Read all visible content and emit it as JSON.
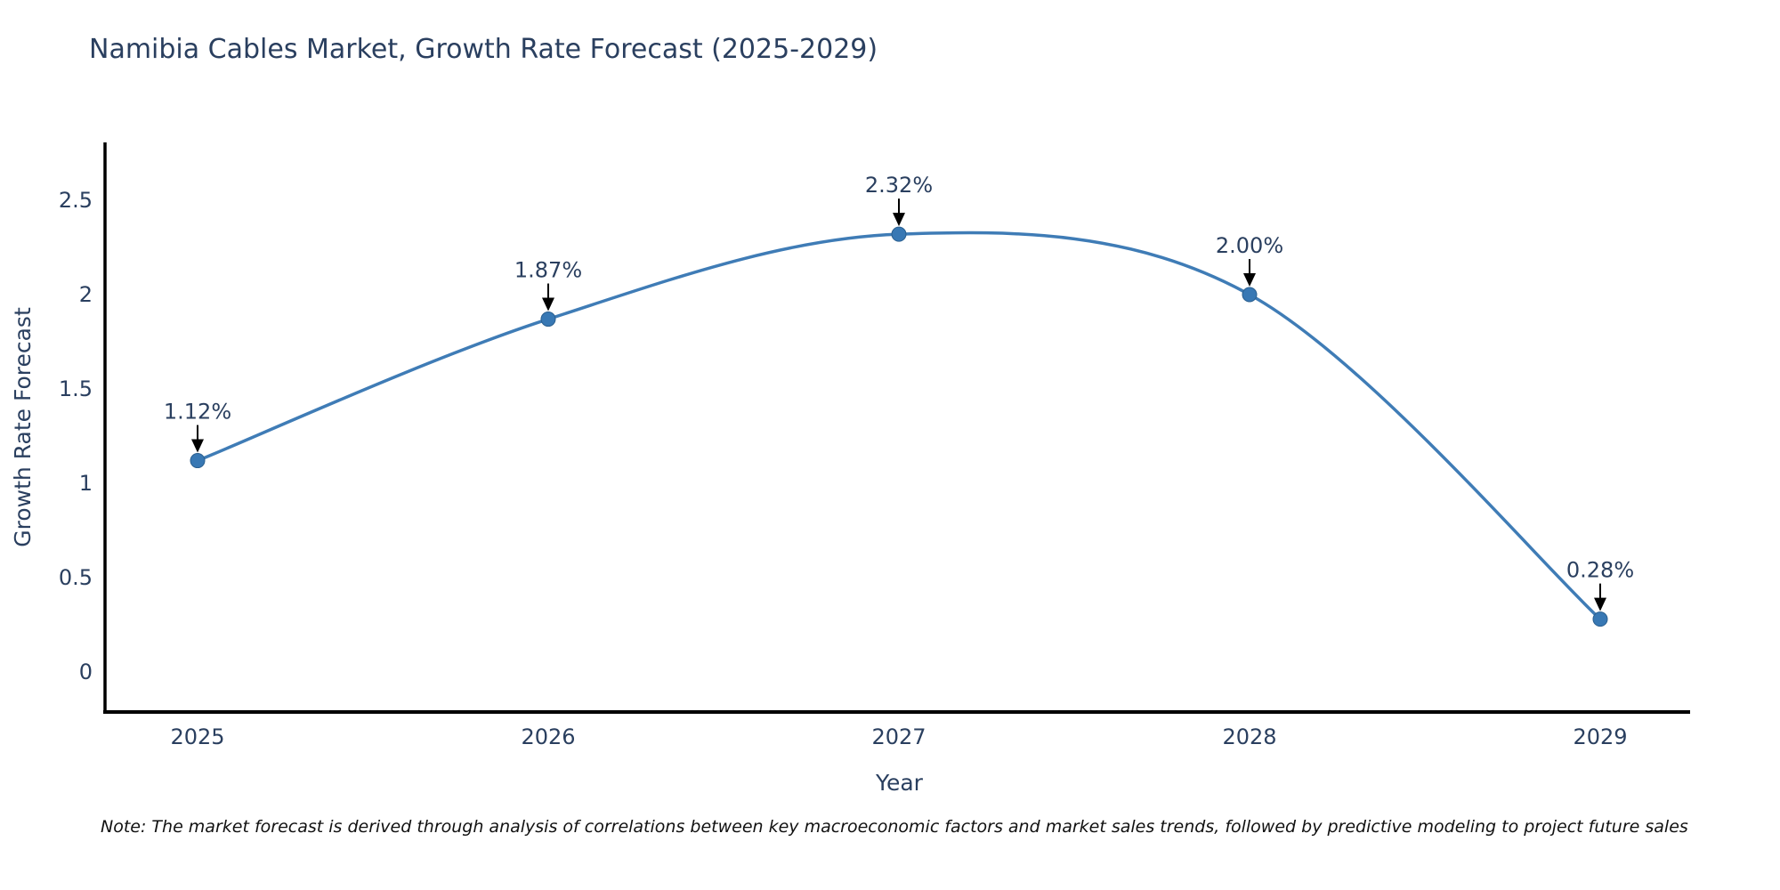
{
  "chart_data": {
    "type": "line",
    "title": "Namibia Cables Market, Growth Rate Forecast (2025-2029)",
    "xlabel": "Year",
    "ylabel": "Growth Rate Forecast",
    "x": [
      "2025",
      "2026",
      "2027",
      "2028",
      "2029"
    ],
    "series": [
      {
        "name": "Growth Rate Forecast",
        "values": [
          1.12,
          1.87,
          2.32,
          2.0,
          0.28
        ]
      }
    ],
    "point_labels": [
      "1.12%",
      "1.87%",
      "2.32%",
      "2.00%",
      "0.28%"
    ],
    "yticks": [
      0,
      0.5,
      1,
      1.5,
      2,
      2.5
    ],
    "ylim": [
      -0.21,
      2.81
    ],
    "line_shape": "spline",
    "grid": false,
    "legend_position": "none",
    "markers": true,
    "annotation_style": "value label with down arrow above each point",
    "note": "Note: The market forecast is derived through analysis of correlations between key macroeconomic factors and market sales trends, followed by predictive modeling to project future sales",
    "colors": {
      "line": "#3f7cb6",
      "marker": "#3878b4",
      "marker_edge": "#2a5f8f",
      "axis": "#000000",
      "text": "#2a3f5f",
      "annotation_text": "#2a3f5f",
      "annotation_arrow": "#000000",
      "note_text": "#111111",
      "background": "#ffffff"
    }
  }
}
